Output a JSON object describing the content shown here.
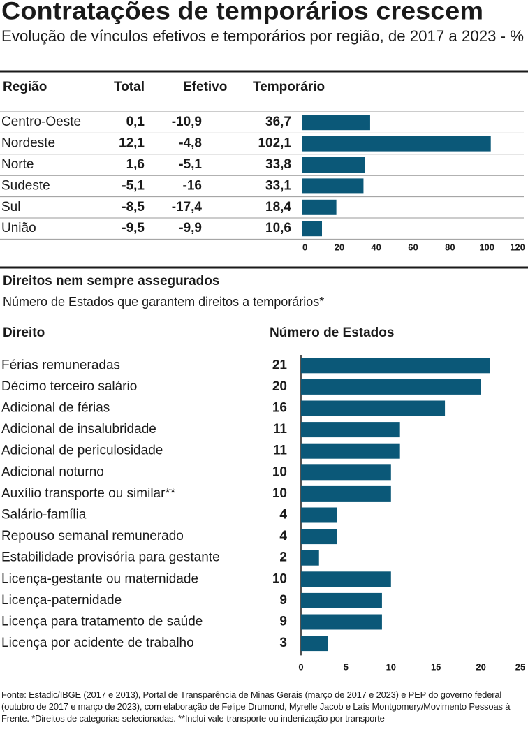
{
  "title": "Contratações de temporários crescem",
  "subtitle": "Evolução de vínculos efetivos e temporários por região, de 2017 a 2023 - %",
  "source": "Fonte: Estadic/IBGE (2017 e 2013), Portal de Transparência de Minas Gerais (março de 2017 e 2023) e PEP do governo federal (outubro de 2017 e março de 2023), com elaboração de Felipe Drumond, Myrelle Jacob e Laís Montgomery/Movimento Pessoas à Frente. *Direitos de categorias selecionadas. **Inclui vale-transporte ou indenização por transporte",
  "chart_data": [
    {
      "type": "bar",
      "orientation": "horizontal",
      "category_header": "Região",
      "categories": [
        "Centro-Oeste",
        "Nordeste",
        "Norte",
        "Sudeste",
        "Sul",
        "União"
      ],
      "series": [
        {
          "name": "Total",
          "values": [
            0.1,
            12.1,
            1.6,
            -5.1,
            -8.5,
            -9.5
          ],
          "value_labels": [
            "0,1",
            "12,1",
            "1,6",
            "-5,1",
            "-8,5",
            "-9,5"
          ]
        },
        {
          "name": "Efetivo",
          "values": [
            -10.9,
            -4.8,
            -5.1,
            -16,
            -17.4,
            -9.9
          ],
          "value_labels": [
            "-10,9",
            "-4,8",
            "-5,1",
            "-16",
            "-17,4",
            "-9,9"
          ]
        },
        {
          "name": "Temporário",
          "color": "#0b5878",
          "values": [
            36.7,
            102.1,
            33.8,
            33.1,
            18.4,
            10.6
          ],
          "value_labels": [
            "36,7",
            "102,1",
            "33,8",
            "33,1",
            "18,4",
            "10,6"
          ]
        }
      ],
      "xlim": [
        0,
        120
      ],
      "xticks": [
        0,
        20,
        40,
        60,
        80,
        100,
        120
      ]
    },
    {
      "type": "bar",
      "orientation": "horizontal",
      "title": "Direitos nem sempre assegurados",
      "subtitle": "Número de Estados que garantem direitos a temporários*",
      "category_header": "Direito",
      "value_header": "Número de Estados",
      "categories": [
        "Férias remuneradas",
        "Décimo terceiro salário",
        "Adicional de férias",
        "Adicional de insalubridade",
        "Adicional de periculosidade",
        "Adicional noturno",
        "Auxílio transporte ou similar**",
        "Salário-família",
        "Repouso semanal remunerado",
        "Estabilidade provisória para gestante",
        "Licença-gestante ou maternidade",
        "Licença-paternidade",
        "Licença para tratamento de saúde",
        "Licença por acidente de trabalho"
      ],
      "values": [
        21,
        20,
        16,
        11,
        11,
        10,
        10,
        4,
        4,
        2,
        10,
        9,
        9,
        3
      ],
      "color": "#0b5878",
      "xlim": [
        0,
        25
      ],
      "xticks": [
        0,
        5,
        10,
        15,
        20,
        25
      ]
    }
  ]
}
